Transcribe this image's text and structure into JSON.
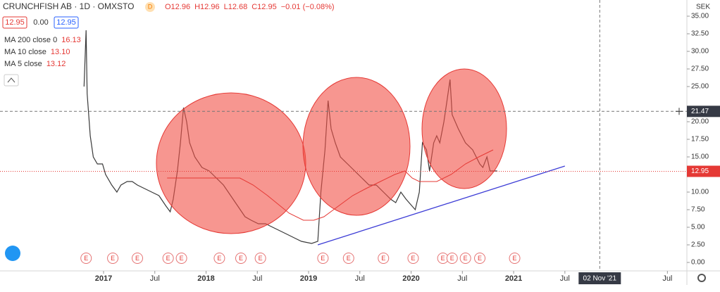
{
  "header": {
    "symbol": "CRUNCHFISH AB · 1D · OMXSTO",
    "badge": "D",
    "ohlc": [
      "O12.96",
      "H12.96",
      "L12.68",
      "C12.95",
      "−0.01 (−0.08%)"
    ],
    "sell": "12.95",
    "spread": "0.00",
    "buy": "12.95",
    "indicators": [
      {
        "name": "MA 200 close 0",
        "value": "16.13"
      },
      {
        "name": "MA 10 close",
        "value": "13.10"
      },
      {
        "name": "MA 5 close",
        "value": "13.12"
      }
    ]
  },
  "chart_data": {
    "type": "line",
    "currency": "SEK",
    "xlim": [
      2015.99,
      2022.69
    ],
    "ylim": [
      -1,
      37.3
    ],
    "xticks": [
      2017,
      {
        "value": 2017.5,
        "label": "Jul"
      },
      2018,
      {
        "value": 2018.5,
        "label": "Jul"
      },
      2019,
      {
        "value": 2019.5,
        "label": "Jul"
      },
      2020,
      {
        "value": 2020.5,
        "label": "Jul"
      },
      2021,
      {
        "value": 2021.5,
        "label": "Jul"
      },
      {
        "value": 2022.5,
        "label": "Jul"
      }
    ],
    "yticks": [
      {
        "value": 0,
        "label": "0.00"
      },
      {
        "value": 2.5,
        "label": "2.50"
      },
      {
        "value": 5,
        "label": "5.00"
      },
      {
        "value": 7.5,
        "label": "7.50"
      },
      {
        "value": 10,
        "label": "10.00"
      },
      {
        "value": 15,
        "label": "15.00"
      },
      {
        "value": 17.5,
        "label": "17.50"
      },
      {
        "value": 20,
        "label": "20.00"
      },
      {
        "value": 25,
        "label": "25.00"
      },
      {
        "value": 27.5,
        "label": "27.50"
      },
      {
        "value": 30,
        "label": "30.00"
      },
      {
        "value": 32.5,
        "label": "32.50"
      },
      {
        "value": 35,
        "label": "35.00"
      }
    ],
    "price": {
      "color": "#3a3a3a",
      "x": [
        2016.81,
        2016.83,
        2016.84,
        2016.87,
        2016.9,
        2016.94,
        2016.99,
        2017.02,
        2017.08,
        2017.13,
        2017.17,
        2017.23,
        2017.28,
        2017.33,
        2017.4,
        2017.47,
        2017.54,
        2017.61,
        2017.65,
        2017.68,
        2017.72,
        2017.75,
        2017.78,
        2017.81,
        2017.84,
        2017.89,
        2017.96,
        2018.03,
        2018.1,
        2018.17,
        2018.24,
        2018.31,
        2018.38,
        2018.44,
        2018.51,
        2018.58,
        2018.65,
        2018.72,
        2018.79,
        2018.86,
        2018.93,
        2019.03,
        2019.09,
        2019.12,
        2019.16,
        2019.19,
        2019.22,
        2019.26,
        2019.31,
        2019.38,
        2019.45,
        2019.52,
        2019.59,
        2019.66,
        2019.73,
        2019.8,
        2019.85,
        2019.9,
        2019.95,
        2020.01,
        2020.04,
        2020.08,
        2020.11,
        2020.15,
        2020.18,
        2020.22,
        2020.25,
        2020.28,
        2020.32,
        2020.35,
        2020.38,
        2020.4,
        2020.46,
        2020.53,
        2020.6,
        2020.67,
        2020.7,
        2020.74,
        2020.77,
        2020.81,
        2020.84
      ],
      "values": [
        25,
        33,
        24,
        18,
        15,
        14,
        14,
        12.5,
        11,
        10,
        11,
        11.5,
        11.5,
        11,
        10.5,
        10,
        9.5,
        8,
        7.2,
        9,
        13,
        17,
        22,
        20,
        17,
        15,
        13.5,
        13,
        12,
        11,
        9.5,
        8,
        6.5,
        6,
        5.5,
        5.5,
        5,
        4.5,
        4,
        3.5,
        3,
        2.7,
        3,
        10,
        16,
        23,
        19,
        17,
        15,
        14,
        13,
        12,
        11,
        11,
        10,
        9,
        8.5,
        10,
        9,
        8,
        7.5,
        10,
        17,
        16,
        13,
        17,
        18,
        17,
        20,
        23,
        26,
        21,
        19,
        17,
        16,
        14,
        13.5,
        15,
        13,
        13,
        13
      ]
    },
    "ma200": {
      "color": "#e53935",
      "x": [
        2017.62,
        2018.05,
        2018.33,
        2018.46,
        2018.6,
        2018.81,
        2018.95,
        2019.05,
        2019.15,
        2019.29,
        2019.43,
        2019.56,
        2019.7,
        2019.84,
        2019.94,
        2020.01,
        2020.08,
        2020.25,
        2020.39,
        2020.53,
        2020.66,
        2020.8
      ],
      "values": [
        12,
        12,
        12,
        11,
        9.5,
        7,
        6,
        6,
        6.5,
        8,
        9.5,
        10.5,
        11.5,
        12.5,
        13,
        12,
        11.5,
        11.5,
        12.5,
        14,
        15,
        16
      ]
    },
    "trendline": {
      "color": "#3d3dd6",
      "x": [
        2019.09,
        2021.5
      ],
      "values": [
        2.5,
        13.7
      ]
    },
    "last_price": 12.95,
    "crosshair": {
      "x": 2021.84,
      "x_label": "02 Nov '21",
      "y": 21.47
    },
    "events": [
      {
        "x": 2016.83,
        "label": "E"
      },
      {
        "x": 2017.09,
        "label": "E"
      },
      {
        "x": 2017.33,
        "label": "E"
      },
      {
        "x": 2017.63,
        "label": "E"
      },
      {
        "x": 2017.76,
        "label": "E"
      },
      {
        "x": 2018.13,
        "label": "E"
      },
      {
        "x": 2018.34,
        "label": "E"
      },
      {
        "x": 2018.53,
        "label": "E"
      },
      {
        "x": 2019.14,
        "label": "E"
      },
      {
        "x": 2019.39,
        "label": "E"
      },
      {
        "x": 2019.73,
        "label": "E"
      },
      {
        "x": 2020.02,
        "label": "E"
      },
      {
        "x": 2020.31,
        "label": "E"
      },
      {
        "x": 2020.4,
        "label": "E"
      },
      {
        "x": 2020.53,
        "label": "E"
      },
      {
        "x": 2020.67,
        "label": "E"
      },
      {
        "x": 2021.01,
        "label": "E"
      }
    ]
  }
}
